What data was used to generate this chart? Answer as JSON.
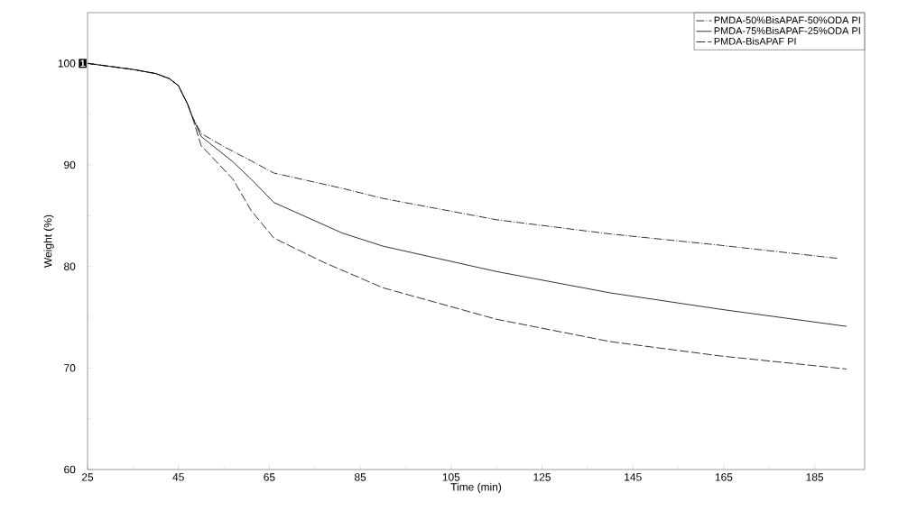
{
  "chart_data": {
    "type": "line",
    "xlabel": "Time (min)",
    "ylabel": "Weight (%)",
    "xlim": [
      25,
      196
    ],
    "ylim": [
      60,
      105
    ],
    "xticks": [
      25,
      45,
      65,
      85,
      105,
      125,
      145,
      165,
      185
    ],
    "yticks": [
      60,
      70,
      80,
      90,
      100
    ],
    "legend": "top right",
    "grid": false,
    "marker": "none",
    "annotations": [
      {
        "text": "1",
        "x": 25,
        "y": 100
      }
    ],
    "series": [
      {
        "name": "PMDA-50%BisAPAF-50%ODA PI",
        "color": "#000000",
        "line_style": "dashdotted",
        "x": [
          25,
          30,
          35,
          40,
          43,
          45,
          47,
          48,
          50,
          55,
          61,
          66,
          81,
          90,
          115,
          140,
          164,
          190
        ],
        "values": [
          100,
          99.7,
          99.4,
          99.0,
          98.5,
          97.8,
          96.0,
          94.8,
          93.1,
          91.8,
          90.4,
          89.2,
          87.7,
          86.7,
          84.6,
          83.2,
          82.1,
          80.8
        ]
      },
      {
        "name": "PMDA-75%BisAPAF-25%ODA PI",
        "color": "#000000",
        "line_style": "solid",
        "x": [
          25,
          30,
          35,
          40,
          43,
          45,
          47,
          48,
          50,
          57,
          61,
          66,
          81,
          90,
          115,
          140,
          164,
          192
        ],
        "values": [
          100,
          99.7,
          99.4,
          99.0,
          98.5,
          97.8,
          96.0,
          94.8,
          92.8,
          90.3,
          88.6,
          86.3,
          83.3,
          82.0,
          79.5,
          77.4,
          75.8,
          74.1
        ]
      },
      {
        "name": "PMDA-BisAPAF PI",
        "color": "#000000",
        "line_style": "dashed",
        "x": [
          25,
          30,
          35,
          40,
          43,
          45,
          47,
          48,
          50,
          57,
          61,
          66,
          77,
          90,
          115,
          140,
          164,
          192
        ],
        "values": [
          100,
          99.7,
          99.4,
          99.0,
          98.5,
          97.8,
          96.0,
          94.8,
          91.9,
          88.6,
          85.5,
          82.8,
          80.4,
          77.9,
          74.8,
          72.6,
          71.2,
          69.9
        ]
      }
    ]
  }
}
